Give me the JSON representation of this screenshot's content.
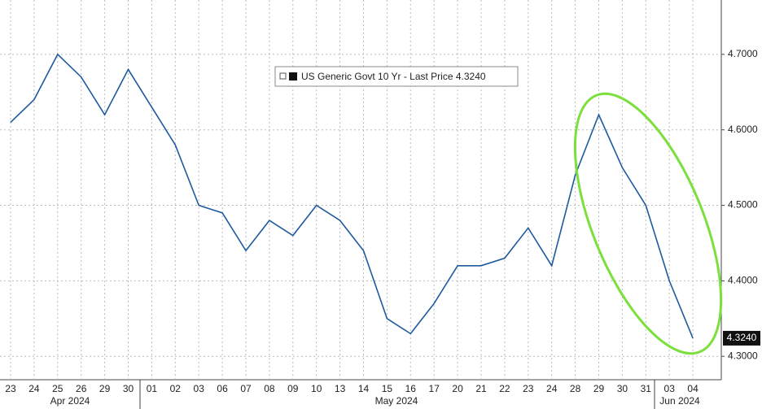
{
  "chart_data": {
    "type": "line",
    "categories": [
      "23",
      "24",
      "25",
      "26",
      "29",
      "30",
      "01",
      "02",
      "03",
      "06",
      "07",
      "08",
      "09",
      "10",
      "13",
      "14",
      "15",
      "16",
      "17",
      "20",
      "21",
      "22",
      "23",
      "24",
      "28",
      "29",
      "30",
      "31",
      "03",
      "04"
    ],
    "months": [
      "Apr 2024",
      "May 2024",
      "Jun 2024"
    ],
    "series": [
      {
        "name": "US Generic Govt 10 Yr - Last Price 4.3240",
        "color": "#1d5a9e",
        "values": [
          4.61,
          4.64,
          4.7,
          4.67,
          4.62,
          4.68,
          4.63,
          4.58,
          4.5,
          4.49,
          4.44,
          4.48,
          4.46,
          4.5,
          4.48,
          4.44,
          4.35,
          4.33,
          4.37,
          4.42,
          4.42,
          4.43,
          4.47,
          4.42,
          4.54,
          4.62,
          4.55,
          4.5,
          4.4,
          4.324
        ]
      }
    ],
    "last_price": {
      "value": 4.324,
      "label": "4.3240"
    },
    "ylim": [
      4.269,
      4.772
    ],
    "yticks": [
      {
        "value": 4.3,
        "label": "4.3000"
      },
      {
        "value": 4.4,
        "label": "4.4000"
      },
      {
        "value": 4.5,
        "label": "4.5000"
      },
      {
        "value": 4.6,
        "label": "4.6000"
      },
      {
        "value": 4.7,
        "label": "4.7000"
      }
    ],
    "grid": true
  }
}
